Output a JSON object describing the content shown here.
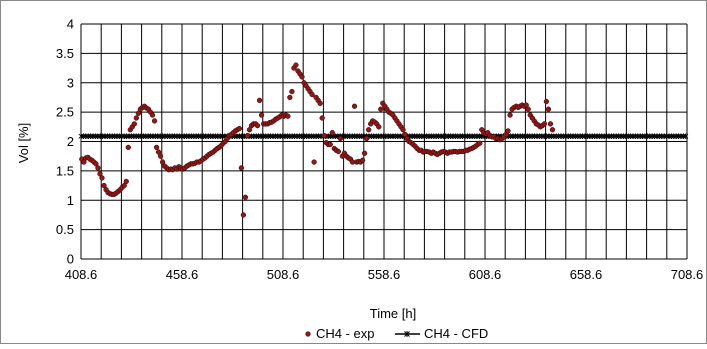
{
  "chart_data": {
    "type": "scatter",
    "title": "",
    "xlabel": "Time [h]",
    "ylabel": "Vol [%]",
    "xlim": [
      408.6,
      708.6
    ],
    "ylim": [
      0,
      4
    ],
    "x_ticks": [
      408.6,
      458.6,
      508.6,
      558.6,
      608.6,
      658.6,
      708.6
    ],
    "x_tick_labels": [
      "408.6",
      "458.6",
      "508.6",
      "558.6",
      "608.6",
      "658.6",
      "708.6"
    ],
    "y_ticks": [
      0,
      0.5,
      1,
      1.5,
      2,
      2.5,
      3,
      3.5,
      4
    ],
    "y_tick_labels": [
      "0",
      "0.5",
      "1",
      "1.5",
      "2",
      "2.5",
      "3",
      "3.5",
      "4"
    ],
    "x_grid_step": 10,
    "grid": true,
    "legend_position": "bottom",
    "series": [
      {
        "name": "CH4 - exp",
        "kind": "markers",
        "color": "#8b1a1a",
        "points": [
          [
            409,
            1.7
          ],
          [
            410,
            1.65
          ],
          [
            411,
            1.72
          ],
          [
            412,
            1.73
          ],
          [
            413,
            1.7
          ],
          [
            414,
            1.68
          ],
          [
            415,
            1.65
          ],
          [
            416,
            1.62
          ],
          [
            417,
            1.55
          ],
          [
            418,
            1.45
          ],
          [
            419,
            1.38
          ],
          [
            420,
            1.25
          ],
          [
            421,
            1.18
          ],
          [
            422,
            1.13
          ],
          [
            423,
            1.11
          ],
          [
            424,
            1.1
          ],
          [
            425,
            1.1
          ],
          [
            426,
            1.12
          ],
          [
            427,
            1.15
          ],
          [
            428,
            1.18
          ],
          [
            429,
            1.22
          ],
          [
            430,
            1.25
          ],
          [
            431,
            1.32
          ],
          [
            432,
            1.9
          ],
          [
            433,
            2.2
          ],
          [
            434,
            2.25
          ],
          [
            435,
            2.3
          ],
          [
            436,
            2.4
          ],
          [
            437,
            2.48
          ],
          [
            438,
            2.55
          ],
          [
            439,
            2.58
          ],
          [
            440,
            2.6
          ],
          [
            441,
            2.57
          ],
          [
            442,
            2.55
          ],
          [
            443,
            2.5
          ],
          [
            444,
            2.45
          ],
          [
            445,
            2.35
          ],
          [
            446,
            1.9
          ],
          [
            447,
            1.82
          ],
          [
            448,
            1.75
          ],
          [
            449,
            1.65
          ],
          [
            450,
            1.58
          ],
          [
            451,
            1.55
          ],
          [
            452,
            1.52
          ],
          [
            453,
            1.53
          ],
          [
            454,
            1.52
          ],
          [
            455,
            1.55
          ],
          [
            456,
            1.53
          ],
          [
            457,
            1.57
          ],
          [
            458,
            1.55
          ],
          [
            459,
            1.53
          ],
          [
            460,
            1.55
          ],
          [
            461,
            1.58
          ],
          [
            462,
            1.6
          ],
          [
            463,
            1.62
          ],
          [
            464,
            1.62
          ],
          [
            465,
            1.63
          ],
          [
            466,
            1.65
          ],
          [
            467,
            1.65
          ],
          [
            468,
            1.67
          ],
          [
            469,
            1.7
          ],
          [
            470,
            1.72
          ],
          [
            471,
            1.75
          ],
          [
            472,
            1.78
          ],
          [
            473,
            1.8
          ],
          [
            474,
            1.82
          ],
          [
            475,
            1.85
          ],
          [
            476,
            1.88
          ],
          [
            477,
            1.9
          ],
          [
            478,
            1.93
          ],
          [
            479,
            1.97
          ],
          [
            480,
            2.0
          ],
          [
            481,
            2.05
          ],
          [
            482,
            2.1
          ],
          [
            483,
            2.12
          ],
          [
            484,
            2.15
          ],
          [
            485,
            2.18
          ],
          [
            486,
            2.2
          ],
          [
            487,
            2.22
          ],
          [
            488,
            1.55
          ],
          [
            489,
            0.75
          ],
          [
            490,
            1.05
          ],
          [
            491,
            2.1
          ],
          [
            492,
            2.2
          ],
          [
            493,
            2.27
          ],
          [
            494,
            2.3
          ],
          [
            495,
            2.3
          ],
          [
            496,
            2.27
          ],
          [
            497,
            2.7
          ],
          [
            498,
            2.45
          ],
          [
            499,
            2.3
          ],
          [
            500,
            2.3
          ],
          [
            501,
            2.3
          ],
          [
            502,
            2.32
          ],
          [
            503,
            2.33
          ],
          [
            504,
            2.35
          ],
          [
            505,
            2.38
          ],
          [
            506,
            2.4
          ],
          [
            507,
            2.42
          ],
          [
            508,
            2.45
          ],
          [
            509,
            2.43
          ],
          [
            510,
            2.45
          ],
          [
            511,
            2.43
          ],
          [
            512,
            2.75
          ],
          [
            513,
            2.85
          ],
          [
            514,
            3.25
          ],
          [
            515,
            3.3
          ],
          [
            516,
            3.2
          ],
          [
            517,
            3.15
          ],
          [
            518,
            3.1
          ],
          [
            519,
            3.0
          ],
          [
            520,
            2.95
          ],
          [
            521,
            2.9
          ],
          [
            522,
            2.85
          ],
          [
            523,
            2.8
          ],
          [
            524,
            1.65
          ],
          [
            525,
            2.75
          ],
          [
            526,
            2.7
          ],
          [
            527,
            2.65
          ],
          [
            528,
            2.4
          ],
          [
            529,
            2.1
          ],
          [
            530,
            1.98
          ],
          [
            531,
            1.95
          ],
          [
            532,
            1.95
          ],
          [
            533,
            2.15
          ],
          [
            534,
            1.88
          ],
          [
            535,
            1.85
          ],
          [
            536,
            1.83
          ],
          [
            537,
            2.05
          ],
          [
            538,
            1.75
          ],
          [
            539,
            1.8
          ],
          [
            540,
            1.75
          ],
          [
            541,
            1.72
          ],
          [
            542,
            1.7
          ],
          [
            543,
            1.65
          ],
          [
            544,
            2.6
          ],
          [
            545,
            1.65
          ],
          [
            546,
            1.66
          ],
          [
            547,
            1.65
          ],
          [
            548,
            1.68
          ],
          [
            549,
            1.8
          ],
          [
            550,
            2.05
          ],
          [
            551,
            2.2
          ],
          [
            552,
            2.3
          ],
          [
            553,
            2.35
          ],
          [
            554,
            2.33
          ],
          [
            555,
            2.3
          ],
          [
            556,
            2.25
          ],
          [
            557,
            2.55
          ],
          [
            558,
            2.65
          ],
          [
            559,
            2.6
          ],
          [
            560,
            2.55
          ],
          [
            561,
            2.5
          ],
          [
            562,
            2.48
          ],
          [
            563,
            2.45
          ],
          [
            564,
            2.4
          ],
          [
            565,
            2.35
          ],
          [
            566,
            2.3
          ],
          [
            567,
            2.25
          ],
          [
            568,
            2.2
          ],
          [
            569,
            2.12
          ],
          [
            570,
            2.05
          ],
          [
            571,
            2.0
          ],
          [
            572,
            1.98
          ],
          [
            573,
            1.95
          ],
          [
            574,
            1.92
          ],
          [
            575,
            1.88
          ],
          [
            576,
            1.85
          ],
          [
            577,
            1.85
          ],
          [
            578,
            1.82
          ],
          [
            579,
            1.83
          ],
          [
            580,
            1.83
          ],
          [
            581,
            1.82
          ],
          [
            582,
            1.8
          ],
          [
            583,
            1.82
          ],
          [
            584,
            1.8
          ],
          [
            585,
            1.78
          ],
          [
            586,
            1.8
          ],
          [
            587,
            1.82
          ],
          [
            588,
            1.83
          ],
          [
            589,
            1.82
          ],
          [
            590,
            1.8
          ],
          [
            591,
            1.82
          ],
          [
            592,
            1.82
          ],
          [
            593,
            1.83
          ],
          [
            594,
            1.83
          ],
          [
            595,
            1.82
          ],
          [
            596,
            1.83
          ],
          [
            597,
            1.83
          ],
          [
            598,
            1.83
          ],
          [
            599,
            1.85
          ],
          [
            600,
            1.85
          ],
          [
            601,
            1.87
          ],
          [
            602,
            1.88
          ],
          [
            603,
            1.9
          ],
          [
            604,
            1.92
          ],
          [
            605,
            1.95
          ],
          [
            606,
            1.97
          ],
          [
            607,
            2.2
          ],
          [
            608,
            2.15
          ],
          [
            609,
            2.13
          ],
          [
            610,
            2.15
          ],
          [
            611,
            2.1
          ],
          [
            612,
            2.08
          ],
          [
            613,
            2.08
          ],
          [
            614,
            2.05
          ],
          [
            615,
            2.05
          ],
          [
            616,
            2.03
          ],
          [
            617,
            2.05
          ],
          [
            618,
            2.08
          ],
          [
            619,
            2.12
          ],
          [
            620,
            2.18
          ],
          [
            621,
            2.45
          ],
          [
            622,
            2.55
          ],
          [
            623,
            2.58
          ],
          [
            624,
            2.6
          ],
          [
            625,
            2.58
          ],
          [
            626,
            2.6
          ],
          [
            627,
            2.62
          ],
          [
            628,
            2.6
          ],
          [
            629,
            2.62
          ],
          [
            630,
            2.55
          ],
          [
            631,
            2.45
          ],
          [
            632,
            2.4
          ],
          [
            633,
            2.35
          ],
          [
            634,
            2.3
          ],
          [
            635,
            2.28
          ],
          [
            636,
            2.25
          ],
          [
            637,
            2.27
          ],
          [
            638,
            2.3
          ],
          [
            639,
            2.68
          ],
          [
            640,
            2.55
          ],
          [
            641,
            2.3
          ],
          [
            642,
            2.2
          ]
        ]
      },
      {
        "name": "CH4 - CFD",
        "kind": "line-with-markers",
        "color": "#000000",
        "x": [
          408.6,
          708.6
        ],
        "y": [
          2.09,
          2.09
        ]
      }
    ]
  }
}
